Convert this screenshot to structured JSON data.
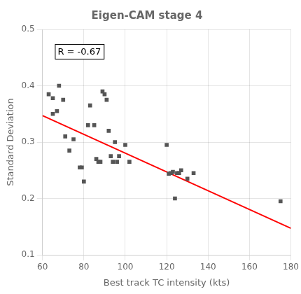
{
  "chart_data": {
    "type": "scatter",
    "title": "Eigen-CAM stage 4",
    "xlabel": "Best track TC intensity (kts)",
    "ylabel": "Standard Deviation",
    "annotation": "R = -0.67",
    "xlim": [
      60,
      180
    ],
    "ylim": [
      0.1,
      0.5
    ],
    "xticks": [
      60,
      80,
      100,
      120,
      140,
      160,
      180
    ],
    "yticks": [
      0.1,
      0.2,
      0.3,
      0.4,
      0.5
    ],
    "grid": true,
    "series": [
      {
        "type": "scatter",
        "marker": "square",
        "color": "#555555",
        "x": [
          63,
          65,
          65,
          67,
          68,
          70,
          71,
          73,
          75,
          78,
          79,
          80,
          82,
          83,
          85,
          86,
          87,
          88,
          89,
          90,
          91,
          92,
          93,
          94,
          95,
          96,
          97,
          100,
          102,
          120,
          121,
          122,
          123,
          124,
          125,
          126,
          127,
          130,
          133,
          175
        ],
        "values": [
          0.385,
          0.378,
          0.35,
          0.355,
          0.4,
          0.375,
          0.31,
          0.285,
          0.305,
          0.255,
          0.255,
          0.23,
          0.33,
          0.365,
          0.33,
          0.27,
          0.265,
          0.265,
          0.39,
          0.385,
          0.375,
          0.32,
          0.275,
          0.265,
          0.3,
          0.265,
          0.275,
          0.295,
          0.265,
          0.295,
          0.244,
          0.245,
          0.247,
          0.2,
          0.245,
          0.245,
          0.25,
          0.235,
          0.245,
          0.195
        ]
      },
      {
        "type": "line",
        "color": "#ff0000",
        "x": [
          60,
          180
        ],
        "values": [
          0.347,
          0.147
        ]
      }
    ]
  }
}
